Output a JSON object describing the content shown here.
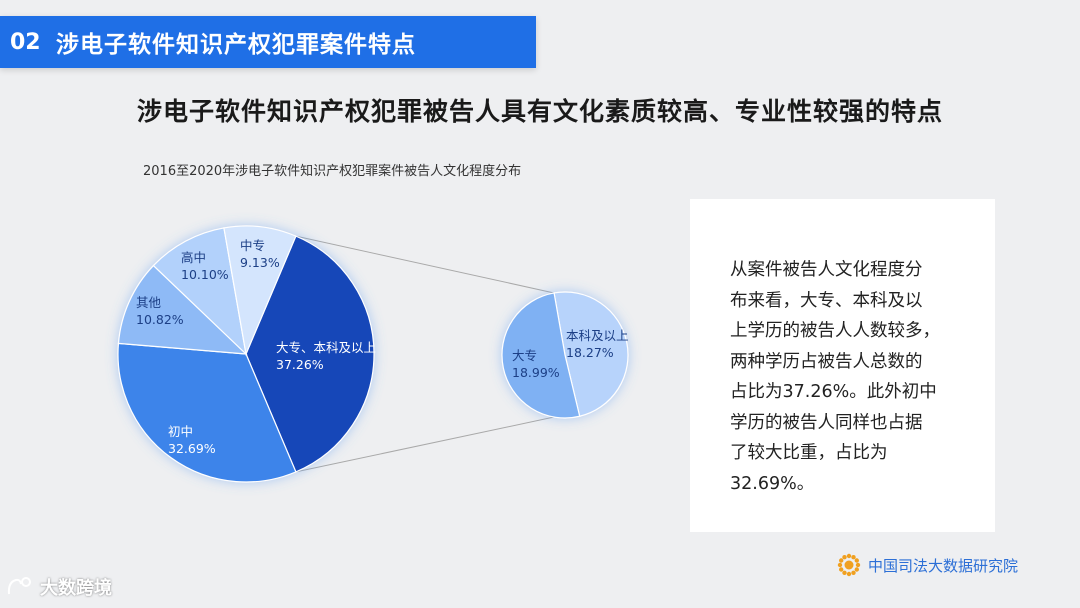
{
  "section": {
    "number": "02",
    "title": "涉电子软件知识产权犯罪案件特点"
  },
  "headline": "涉电子软件知识产权犯罪被告人具有文化素质较高、专业性较强的特点",
  "chart_title": "2016至2020年涉电子软件知识产权犯罪案件被告人文化程度分布",
  "chart_data": {
    "type": "pie",
    "title": "2016至2020年涉电子软件知识产权犯罪案件被告人文化程度分布",
    "slices": [
      {
        "label": "大专、本科及以上",
        "value": 37.26,
        "display": "37.26%",
        "color": "#1546b8"
      },
      {
        "label": "初中",
        "value": 32.69,
        "display": "32.69%",
        "color": "#3c84ea"
      },
      {
        "label": "其他",
        "value": 10.82,
        "display": "10.82%",
        "color": "#8ebaf6"
      },
      {
        "label": "高中",
        "value": 10.1,
        "display": "10.10%",
        "color": "#b2d1fb"
      },
      {
        "label": "中专",
        "value": 9.13,
        "display": "9.13%",
        "color": "#d4e5fd"
      }
    ],
    "breakdown": {
      "parent": "大专、本科及以上",
      "slices": [
        {
          "label": "本科及以上",
          "value": 18.27,
          "display": "18.27%",
          "color": "#b7d3fb"
        },
        {
          "label": "大专",
          "value": 18.99,
          "display": "18.99%",
          "color": "#7fb1f3"
        }
      ]
    }
  },
  "text_box": {
    "lines": [
      "从案件被告人文化程度分",
      "布来看，大专、本科及以",
      "上学历的被告人人数较多，",
      "两种学历占被告人总数的",
      "占比为37.26%。此外初中",
      "学历的被告人同样也占据",
      "了较大比重，占比为",
      "32.69%。"
    ]
  },
  "logo_text": "中国司法大数据研究院",
  "watermark_text": "大数跨境",
  "colors": {
    "accent": "#1f6fe6",
    "logo": "#2c6fd6"
  }
}
